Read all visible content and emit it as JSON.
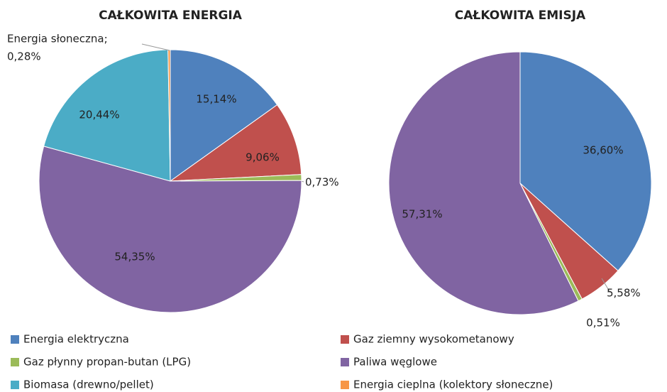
{
  "legend": {
    "entries": [
      {
        "name": "Energia elektryczna",
        "color": "#4f81bd"
      },
      {
        "name": "Gaz ziemny wysokometanowy",
        "color": "#c0504d"
      },
      {
        "name": "Gaz płynny propan-butan (LPG)",
        "color": "#9bbb59"
      },
      {
        "name": "Paliwa węglowe",
        "color": "#8064a2"
      },
      {
        "name": "Biomasa (drewno/pellet)",
        "color": "#4bacc6"
      },
      {
        "name": "Energia cieplna (kolektory słoneczne)",
        "color": "#f79646"
      }
    ]
  },
  "chart_data": [
    {
      "type": "pie",
      "title": "CAŁKOWITA ENERGIA",
      "values": [
        15.14,
        9.06,
        0.73,
        54.35,
        20.44,
        0.28
      ],
      "value_labels": [
        "15,14%",
        "9,06%",
        "0,73%",
        "54,35%",
        "20,44%",
        "0,28%"
      ],
      "callout_name": "Energia słoneczna;",
      "colors": [
        "#4f81bd",
        "#c0504d",
        "#9bbb59",
        "#8064a2",
        "#4bacc6",
        "#f79646"
      ]
    },
    {
      "type": "pie",
      "title": "CAŁKOWITA EMISJA",
      "values": [
        36.6,
        5.58,
        0.51,
        57.31
      ],
      "value_labels": [
        "36,60%",
        "5,58%",
        "0,51%",
        "57,31%"
      ],
      "colors": [
        "#4f81bd",
        "#c0504d",
        "#9bbb59",
        "#8064a2"
      ]
    }
  ]
}
